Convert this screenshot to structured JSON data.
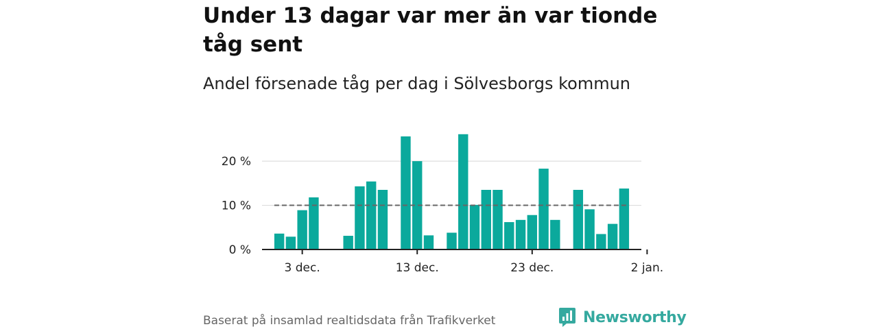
{
  "header": {
    "title": "Under 13 dagar var mer än var tionde tåg sent",
    "subtitle": "Andel försenade tåg per dag i Sölvesborgs kommun"
  },
  "footer": {
    "source": "Baserat på insamlad realtidsdata från Trafikverket",
    "brand": "Newsworthy"
  },
  "colors": {
    "bar": "#0ba99c",
    "reference_line": "#666666",
    "grid": "#dddddd",
    "axis": "#222222",
    "brand": "#35a99f"
  },
  "chart_data": {
    "type": "bar",
    "title": "Andel försenade tåg per dag i Sölvesborgs kommun",
    "xlabel": "",
    "ylabel": "",
    "ylim": [
      0,
      27
    ],
    "yticks": [
      {
        "value": 0,
        "label": "0 %"
      },
      {
        "value": 10,
        "label": "10 %"
      },
      {
        "value": 20,
        "label": "20 %"
      }
    ],
    "xticks": [
      {
        "day": 3,
        "label": "3 dec."
      },
      {
        "day": 13,
        "label": "13 dec."
      },
      {
        "day": 23,
        "label": "23 dec."
      },
      {
        "day": 33,
        "label": "2 jan."
      }
    ],
    "x_range": [
      -0.5,
      32.5
    ],
    "reference_line": {
      "value": 10,
      "style": "dashed"
    },
    "grid": true,
    "series": [
      {
        "name": "Andel försenade tåg",
        "x": [
          1,
          2,
          3,
          4,
          5,
          6,
          7,
          8,
          9,
          10,
          11,
          12,
          13,
          14,
          15,
          16,
          17,
          18,
          19,
          20,
          21,
          22,
          23,
          24,
          25,
          26,
          27,
          28,
          29,
          30,
          31
        ],
        "values": [
          3.6,
          2.9,
          8.9,
          11.8,
          null,
          null,
          3.1,
          14.3,
          15.4,
          13.5,
          null,
          25.6,
          20.0,
          3.2,
          null,
          3.8,
          26.1,
          10.1,
          13.5,
          13.5,
          6.2,
          6.7,
          7.8,
          18.3,
          6.7,
          null,
          13.5,
          9.1,
          3.5,
          5.8,
          13.8
        ]
      }
    ]
  }
}
